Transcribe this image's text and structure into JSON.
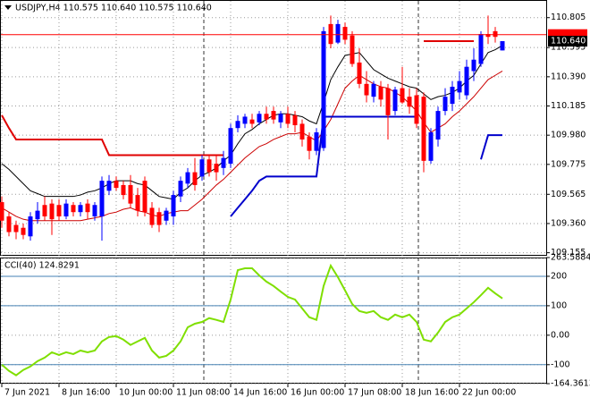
{
  "chart_data": [
    {
      "type": "candlestick",
      "title": "USDJPY,H4  110.575 110.640 110.575 110.640",
      "categories": [
        "7 Jun 2021",
        null,
        null,
        null,
        null,
        null,
        null,
        null,
        "8 Jun 16:00",
        null,
        null,
        null,
        null,
        null,
        null,
        null,
        "10 Jun 00:00",
        null,
        null,
        null,
        null,
        null,
        null,
        null,
        "11 Jun 08:00",
        null,
        null,
        null,
        null,
        null,
        null,
        null,
        "14 Jun 16:00",
        null,
        null,
        null,
        null,
        null,
        null,
        null,
        "16 Jun 00:00",
        null,
        null,
        null,
        null,
        null,
        null,
        null,
        "17 Jun 08:00",
        null,
        null,
        null,
        null,
        null,
        null,
        null,
        "18 Jun 16:00",
        null,
        null,
        null,
        null,
        null,
        null,
        null,
        "22 Jun 00:00",
        null,
        null,
        null,
        null,
        null,
        null
      ],
      "open": [
        109.51,
        109.41,
        109.35,
        109.33,
        109.27,
        109.39,
        109.49,
        109.5,
        109.49,
        109.41,
        109.49,
        109.44,
        109.5,
        109.41,
        109.41,
        109.59,
        109.66,
        109.63,
        109.63,
        109.56,
        109.66,
        109.47,
        109.44,
        109.38,
        109.41,
        109.55,
        109.64,
        109.72,
        109.69,
        109.81,
        109.78,
        109.75,
        109.78,
        110.03,
        110.06,
        110.09,
        110.07,
        110.13,
        110.15,
        110.07,
        110.13,
        110.12,
        110.06,
        109.97,
        109.87,
        109.89,
        110.76,
        110.63,
        110.74,
        110.68,
        110.49,
        110.34,
        110.25,
        110.32,
        110.31,
        110.15,
        110.31,
        110.25,
        110.26,
        110.25,
        109.8,
        109.95,
        110.15,
        110.2,
        110.28,
        110.26,
        110.43,
        110.48,
        110.69,
        110.71,
        110.575
      ],
      "high": [
        109.55,
        109.44,
        109.38,
        109.36,
        109.44,
        109.51,
        109.55,
        109.53,
        109.53,
        109.53,
        109.51,
        109.51,
        109.53,
        109.51,
        109.69,
        109.7,
        109.69,
        109.66,
        109.7,
        109.61,
        109.69,
        109.51,
        109.47,
        109.47,
        109.59,
        109.69,
        109.75,
        109.82,
        109.84,
        109.84,
        109.84,
        109.87,
        110.06,
        110.12,
        110.13,
        110.13,
        110.15,
        110.18,
        110.18,
        110.15,
        110.18,
        110.15,
        110.09,
        110.0,
        110.03,
        110.74,
        110.82,
        110.79,
        110.77,
        110.71,
        110.59,
        110.43,
        110.36,
        110.36,
        110.34,
        110.32,
        110.46,
        110.31,
        110.31,
        110.28,
        110.03,
        110.18,
        110.31,
        110.36,
        110.43,
        110.51,
        110.59,
        110.71,
        110.82,
        110.74,
        110.64
      ],
      "low": [
        109.33,
        109.27,
        109.25,
        109.25,
        109.24,
        109.36,
        109.38,
        109.28,
        109.38,
        109.39,
        109.41,
        109.41,
        109.39,
        109.38,
        109.24,
        109.56,
        109.59,
        109.53,
        109.47,
        109.41,
        109.41,
        109.33,
        109.3,
        109.35,
        109.35,
        109.51,
        109.61,
        109.59,
        109.66,
        109.69,
        109.66,
        109.7,
        109.75,
        110.0,
        110.03,
        110.03,
        110.05,
        110.06,
        110.06,
        110.03,
        110.03,
        110.0,
        109.9,
        109.81,
        109.84,
        109.87,
        110.59,
        110.62,
        110.62,
        110.46,
        110.31,
        110.21,
        110.21,
        110.18,
        109.95,
        110.12,
        110.2,
        110.13,
        110.03,
        109.72,
        109.78,
        109.9,
        110.12,
        110.15,
        110.23,
        110.23,
        110.36,
        110.46,
        110.62,
        110.63,
        110.575
      ],
      "close": [
        109.38,
        109.3,
        109.3,
        109.28,
        109.41,
        109.45,
        109.41,
        109.39,
        109.41,
        109.5,
        109.44,
        109.49,
        109.44,
        109.49,
        109.66,
        109.66,
        109.61,
        109.56,
        109.5,
        109.45,
        109.44,
        109.35,
        109.35,
        109.45,
        109.56,
        109.66,
        109.72,
        109.63,
        109.81,
        109.72,
        109.72,
        109.82,
        110.03,
        110.08,
        110.11,
        110.06,
        110.13,
        110.09,
        110.09,
        110.13,
        110.06,
        110.05,
        109.95,
        109.87,
        110.0,
        110.71,
        110.62,
        110.76,
        110.65,
        110.48,
        110.34,
        110.26,
        110.34,
        110.23,
        110.12,
        110.3,
        110.21,
        110.18,
        110.06,
        109.8,
        110.0,
        110.15,
        110.25,
        110.32,
        110.36,
        110.46,
        110.51,
        110.69,
        110.67,
        110.67,
        110.64
      ],
      "up_color": "#0000ff",
      "down_color": "#ff0000",
      "lines": [
        {
          "color": "#000000",
          "values": [
            109.78,
            109.74,
            109.69,
            109.64,
            109.59,
            109.57,
            109.55,
            109.55,
            109.55,
            109.55,
            109.55,
            109.56,
            109.58,
            109.59,
            109.61,
            109.64,
            109.66,
            109.66,
            109.66,
            109.64,
            109.63,
            109.59,
            109.55,
            109.54,
            109.53,
            109.58,
            109.61,
            109.66,
            109.7,
            109.72,
            109.75,
            109.8,
            109.84,
            109.92,
            109.99,
            110.02,
            110.06,
            110.09,
            110.12,
            110.13,
            110.13,
            110.12,
            110.11,
            110.08,
            110.06,
            110.21,
            110.37,
            110.46,
            110.54,
            110.55,
            110.56,
            110.5,
            110.44,
            110.41,
            110.38,
            110.36,
            110.34,
            110.32,
            110.31,
            110.27,
            110.23,
            110.25,
            110.26,
            110.28,
            110.31,
            110.36,
            110.4,
            110.48,
            110.56,
            110.58,
            110.61
          ]
        },
        {
          "color": "#cc0000",
          "values": [
            109.47,
            109.44,
            109.41,
            109.39,
            109.38,
            109.38,
            109.38,
            109.38,
            109.38,
            109.38,
            109.38,
            109.38,
            109.39,
            109.4,
            109.41,
            109.43,
            109.44,
            109.46,
            109.47,
            109.45,
            109.44,
            109.42,
            109.41,
            109.43,
            109.44,
            109.45,
            109.45,
            109.49,
            109.53,
            109.58,
            109.63,
            109.67,
            109.72,
            109.77,
            109.82,
            109.86,
            109.9,
            109.92,
            109.95,
            109.97,
            109.99,
            109.99,
            110.0,
            109.97,
            109.94,
            110.01,
            110.09,
            110.2,
            110.31,
            110.36,
            110.4,
            110.37,
            110.34,
            110.32,
            110.31,
            110.28,
            110.25,
            110.2,
            110.15,
            110.07,
            110.0,
            110.03,
            110.06,
            110.11,
            110.15,
            110.2,
            110.25,
            110.31,
            110.37,
            110.4,
            110.43
          ]
        },
        {
          "color": "#e00000",
          "width": 2,
          "values": [
            110.12,
            110.03,
            109.95,
            109.95,
            109.95,
            109.95,
            109.95,
            109.95,
            109.95,
            109.95,
            109.95,
            109.95,
            109.95,
            109.95,
            109.95,
            109.84,
            109.84,
            109.84,
            109.84,
            109.84,
            109.84,
            109.84,
            109.84,
            109.84,
            109.84,
            109.84,
            109.84,
            109.84,
            109.84,
            109.84,
            109.84,
            109.84,
            null,
            null,
            null,
            null,
            null,
            null,
            null,
            null,
            null,
            null,
            null,
            null,
            null,
            null,
            null,
            null,
            null,
            null,
            null,
            null,
            null,
            null,
            null,
            null,
            null,
            null,
            null,
            110.64,
            110.64,
            110.64,
            110.64,
            110.64,
            110.64,
            110.64,
            110.64,
            null,
            null,
            null,
            null
          ]
        },
        {
          "color": "#0000cc",
          "width": 2,
          "values": [
            null,
            null,
            null,
            null,
            null,
            null,
            null,
            null,
            null,
            null,
            null,
            null,
            null,
            null,
            null,
            null,
            null,
            null,
            null,
            null,
            null,
            null,
            null,
            null,
            null,
            null,
            null,
            null,
            null,
            null,
            null,
            null,
            109.41,
            109.47,
            109.53,
            109.59,
            109.66,
            109.69,
            109.69,
            109.69,
            109.69,
            109.69,
            109.69,
            109.69,
            109.69,
            110.11,
            110.11,
            110.11,
            110.11,
            110.11,
            110.11,
            110.11,
            110.11,
            110.11,
            110.11,
            110.11,
            110.11,
            110.11,
            110.11,
            null,
            null,
            null,
            null,
            null,
            null,
            null,
            null,
            109.81,
            109.98,
            109.98,
            109.98
          ]
        }
      ],
      "ylim": [
        109.14,
        110.91
      ],
      "yticks": [
        110.805,
        110.595,
        {
          "value": 110.39,
          "label": "110.390"
        },
        110.185,
        {
          "value": 109.98,
          "label": "109.980"
        },
        109.775,
        109.565,
        {
          "value": 109.36,
          "label": "109.360"
        },
        109.155
      ],
      "markers": [
        {
          "value": 110.686,
          "color": "#ff0000"
        },
        {
          "value": 110.64,
          "label": "110.640",
          "color": "#000000"
        }
      ],
      "grid": true
    },
    {
      "type": "line",
      "title": "CCI(40) 124.8291",
      "color": "#7fdf00",
      "values": [
        -100,
        -121,
        -136,
        -118,
        -106,
        -88,
        -76,
        -58,
        -67,
        -58,
        -64,
        -52,
        -58,
        -52,
        -21,
        -6,
        -3,
        -15,
        -33,
        -21,
        -9,
        -52,
        -76,
        -70,
        -52,
        -21,
        27,
        39,
        45,
        58,
        52,
        45,
        121,
        221,
        227,
        227,
        203,
        182,
        167,
        148,
        130,
        121,
        91,
        61,
        52,
        167,
        236,
        197,
        152,
        106,
        82,
        76,
        82,
        61,
        52,
        70,
        61,
        70,
        45,
        -15,
        -21,
        9,
        45,
        61,
        70,
        91,
        112,
        136,
        161,
        142,
        124.8291
      ],
      "ylim": [
        -164.3613,
        263.5884
      ],
      "yticks": [
        263.5884,
        200,
        100,
        {
          "value": 0,
          "label": "0.00"
        },
        -100,
        -164.3613
      ],
      "levels": [
        200,
        100,
        -100
      ],
      "level_color": "#4682b4",
      "grid": true
    }
  ]
}
